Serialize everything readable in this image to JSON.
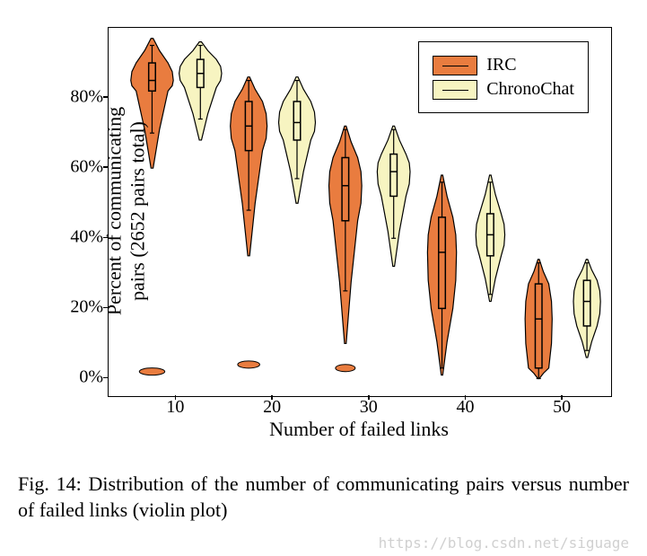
{
  "chart": {
    "type": "violin",
    "title": null,
    "xlabel": "Number of failed links",
    "ylabel_line1": "Percent of communicating",
    "ylabel_line2": "pairs (2652 pairs total)",
    "xlim": [
      3,
      55
    ],
    "ylim": [
      -5,
      100
    ],
    "xticks": [
      10,
      20,
      30,
      40,
      50
    ],
    "yticks": [
      0,
      20,
      40,
      60,
      80
    ],
    "ytick_labels": [
      "0%",
      "20%",
      "40%",
      "60%",
      "80%"
    ],
    "background_color": "#ffffff",
    "border_color": "#000000",
    "axis_fontsize": 22,
    "tick_fontsize": 20,
    "legend": {
      "position": "top-right",
      "border_color": "#000000",
      "items": [
        {
          "label": "IRC",
          "color": "#e97c3f"
        },
        {
          "label": "ChronoChat",
          "color": "#f7f4c1"
        }
      ]
    },
    "series": [
      {
        "name": "IRC",
        "color": "#e97c3f",
        "stroke": "#000000",
        "x_offset": -2.5,
        "violins": [
          {
            "x": 10,
            "median": 85,
            "q1": 82,
            "q3": 90,
            "whisker_lo": 70,
            "whisker_hi": 95,
            "body_lo": 60,
            "body_hi": 97,
            "max_width": 2.2,
            "outlier_lo": 2
          },
          {
            "x": 20,
            "median": 72,
            "q1": 65,
            "q3": 79,
            "whisker_lo": 48,
            "whisker_hi": 85,
            "body_lo": 35,
            "body_hi": 86,
            "max_width": 1.9,
            "outlier_lo": 4
          },
          {
            "x": 30,
            "median": 55,
            "q1": 45,
            "q3": 63,
            "whisker_lo": 25,
            "whisker_hi": 71,
            "body_lo": 10,
            "body_hi": 72,
            "max_width": 1.7,
            "outlier_lo": 3
          },
          {
            "x": 40,
            "median": 36,
            "q1": 20,
            "q3": 46,
            "whisker_lo": 3,
            "whisker_hi": 56,
            "body_lo": 1,
            "body_hi": 58,
            "max_width": 1.5,
            "outlier_lo": null
          },
          {
            "x": 50,
            "median": 17,
            "q1": 3,
            "q3": 27,
            "whisker_lo": 0,
            "whisker_hi": 33,
            "body_lo": 0,
            "body_hi": 34,
            "max_width": 1.4,
            "outlier_lo": null
          }
        ]
      },
      {
        "name": "ChronoChat",
        "color": "#f7f4c1",
        "stroke": "#000000",
        "x_offset": 2.5,
        "violins": [
          {
            "x": 10,
            "median": 87,
            "q1": 83,
            "q3": 91,
            "whisker_lo": 74,
            "whisker_hi": 95,
            "body_lo": 68,
            "body_hi": 96,
            "max_width": 2.2,
            "outlier_lo": null
          },
          {
            "x": 20,
            "median": 73,
            "q1": 68,
            "q3": 79,
            "whisker_lo": 57,
            "whisker_hi": 85,
            "body_lo": 50,
            "body_hi": 86,
            "max_width": 1.9,
            "outlier_lo": null
          },
          {
            "x": 30,
            "median": 59,
            "q1": 52,
            "q3": 64,
            "whisker_lo": 40,
            "whisker_hi": 71,
            "body_lo": 32,
            "body_hi": 72,
            "max_width": 1.7,
            "outlier_lo": null
          },
          {
            "x": 40,
            "median": 41,
            "q1": 35,
            "q3": 47,
            "whisker_lo": 24,
            "whisker_hi": 56,
            "body_lo": 22,
            "body_hi": 58,
            "max_width": 1.5,
            "outlier_lo": null
          },
          {
            "x": 50,
            "median": 22,
            "q1": 15,
            "q3": 28,
            "whisker_lo": 8,
            "whisker_hi": 33,
            "body_lo": 6,
            "body_hi": 34,
            "max_width": 1.4,
            "outlier_lo": null
          }
        ]
      }
    ]
  },
  "caption": "Fig. 14: Distribution of the number of communicating pairs versus number of failed links (violin plot)",
  "watermark": "https://blog.csdn.net/siguage"
}
